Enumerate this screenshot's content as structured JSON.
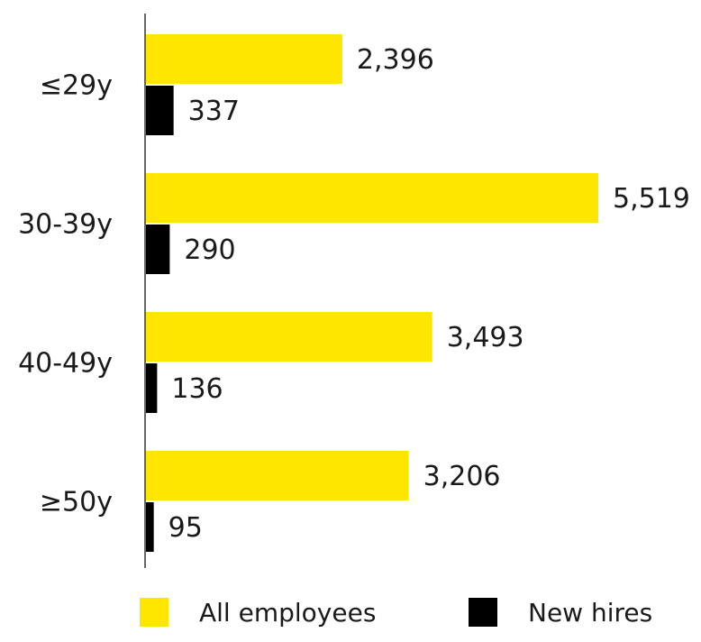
{
  "chart_data": {
    "type": "bar",
    "orientation": "horizontal",
    "categories": [
      "≤29y",
      "30-39y",
      "40-49y",
      "≥50y"
    ],
    "series": [
      {
        "name": "All employees",
        "color": "#ffe600",
        "values": [
          2396,
          5519,
          3493,
          3206
        ],
        "value_labels": [
          "2,396",
          "5,519",
          "3,493",
          "3,206"
        ]
      },
      {
        "name": "New hires",
        "color": "#000000",
        "values": [
          337,
          290,
          136,
          95
        ],
        "value_labels": [
          "337",
          "290",
          "136",
          "95"
        ]
      }
    ]
  }
}
